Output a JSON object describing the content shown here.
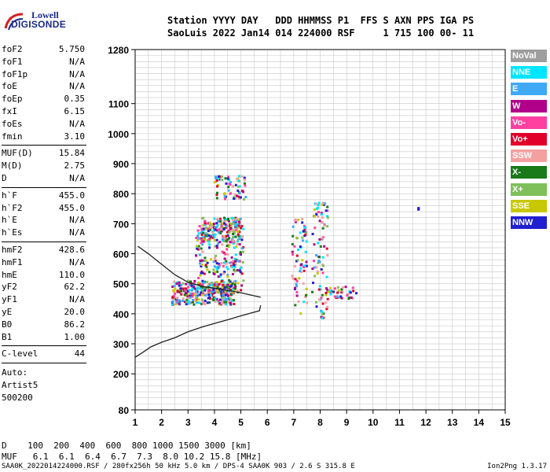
{
  "logo": {
    "line1": "Lowell",
    "line2": "DIGISONDE"
  },
  "header": {
    "line1": "Station YYYY DAY   DDD HHMMSS P1  FFS S AXN PPS IGA PS",
    "line2": "SaoLuis 2022 Jan14 014 224000 RSF     1 715 100 00- 11"
  },
  "params": {
    "group1": [
      {
        "key": "foF2",
        "value": "5.750"
      },
      {
        "key": "foF1",
        "value": "N/A"
      },
      {
        "key": "foF1p",
        "value": "N/A"
      },
      {
        "key": "foE",
        "value": "N/A"
      },
      {
        "key": "foEp",
        "value": "0.35"
      },
      {
        "key": "fxI",
        "value": "6.15"
      },
      {
        "key": "foEs",
        "value": "N/A"
      },
      {
        "key": "fmin",
        "value": "3.10"
      }
    ],
    "group2": [
      {
        "key": "MUF(D)",
        "value": "15.84"
      },
      {
        "key": "M(D)",
        "value": "2.75"
      },
      {
        "key": "D",
        "value": "N/A"
      }
    ],
    "group3": [
      {
        "key": "h`F",
        "value": "455.0"
      },
      {
        "key": "h`F2",
        "value": "455.0"
      },
      {
        "key": "h`E",
        "value": "N/A"
      },
      {
        "key": "h`Es",
        "value": "N/A"
      }
    ],
    "group4": [
      {
        "key": "hmF2",
        "value": "428.6"
      },
      {
        "key": "hmF1",
        "value": "N/A"
      },
      {
        "key": "hmE",
        "value": "110.0"
      },
      {
        "key": "yF2",
        "value": "62.2"
      },
      {
        "key": "yF1",
        "value": "N/A"
      },
      {
        "key": "yE",
        "value": "20.0"
      },
      {
        "key": "B0",
        "value": "86.2"
      },
      {
        "key": "B1",
        "value": "1.00"
      }
    ],
    "group5": [
      {
        "key": "C-level",
        "value": "44"
      }
    ],
    "auto": [
      "Auto:",
      "Artist5",
      "500200"
    ]
  },
  "legend": [
    {
      "label": "NoVal",
      "color": "#9e9e9e"
    },
    {
      "label": "NNE",
      "color": "#00e5ff"
    },
    {
      "label": "E",
      "color": "#3fa9f5"
    },
    {
      "label": "W",
      "color": "#b0008a"
    },
    {
      "label": "Vo-",
      "color": "#ff40a0"
    },
    {
      "label": "Vo+",
      "color": "#e0002a"
    },
    {
      "label": "SSW",
      "color": "#f4a0a0"
    },
    {
      "label": "X-",
      "color": "#1a7a1a"
    },
    {
      "label": "X+",
      "color": "#7fbf5a"
    },
    {
      "label": "SSE",
      "color": "#c8c800"
    },
    {
      "label": "NNW",
      "color": "#2020d0"
    }
  ],
  "bottom": {
    "d_line": "D    100  200  400  600  800 1000 1500 3000 [km]",
    "muf_line": "MUF   6.1  6.1  6.4  6.7  7.3  8.0 10.2 15.8 [MHz]"
  },
  "footer": {
    "left": "SAA0K_2022014224000.RSF / 280fx256h 50 kHz 5.0 km / DPS-4 SAA0K 903 / 2.6 S 315.8 E",
    "right": "Ion2Png 1.3.17"
  },
  "chart_data": {
    "type": "scatter",
    "title": "",
    "xlabel": "",
    "ylabel": "",
    "xlim": [
      1,
      15
    ],
    "ylim": [
      80,
      1280
    ],
    "x_ticks": [
      1,
      2,
      3,
      4,
      5,
      6,
      7,
      8,
      9,
      10,
      11,
      12,
      13,
      14,
      15
    ],
    "y_ticks": [
      80,
      200,
      300,
      400,
      500,
      600,
      700,
      800,
      900,
      1000,
      1100,
      1280
    ],
    "grid": true,
    "series": [
      {
        "name": "Profile",
        "type": "line",
        "x": [
          1.0,
          1.3,
          1.6,
          2.0,
          2.5,
          3.0,
          3.5,
          4.0,
          4.5,
          5.0,
          5.4,
          5.7,
          5.75
        ],
        "y": [
          255,
          272,
          290,
          305,
          320,
          340,
          355,
          368,
          380,
          393,
          403,
          410,
          428
        ]
      },
      {
        "name": "Trace",
        "type": "line",
        "x": [
          1.1,
          1.5,
          2.0,
          2.5,
          3.0,
          3.5,
          4.0,
          4.5,
          5.0,
          5.5,
          5.75
        ],
        "y": [
          625,
          600,
          565,
          530,
          505,
          492,
          485,
          478,
          470,
          460,
          455
        ]
      }
    ],
    "echo_clusters": [
      {
        "x": 3.6,
        "y": 470,
        "dx": 2.4,
        "dy": 40,
        "count": 320
      },
      {
        "x": 4.2,
        "y": 590,
        "dx": 1.8,
        "dy": 120,
        "count": 260
      },
      {
        "x": 4.3,
        "y": 680,
        "dx": 1.6,
        "dy": 40,
        "count": 140
      },
      {
        "x": 4.6,
        "y": 820,
        "dx": 1.2,
        "dy": 40,
        "count": 70
      },
      {
        "x": 7.2,
        "y": 560,
        "dx": 0.6,
        "dy": 160,
        "count": 70
      },
      {
        "x": 8.0,
        "y": 580,
        "dx": 0.6,
        "dy": 200,
        "count": 90
      },
      {
        "x": 8.8,
        "y": 470,
        "dx": 1.2,
        "dy": 20,
        "count": 40
      },
      {
        "x": 11.7,
        "y": 750,
        "dx": 0.1,
        "dy": 10,
        "count": 3
      }
    ]
  }
}
